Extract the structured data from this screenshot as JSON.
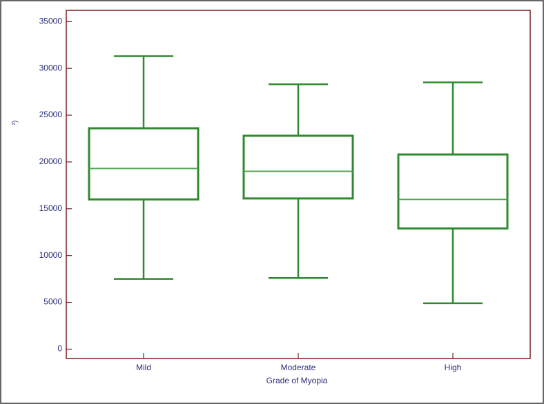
{
  "chart_data": {
    "type": "box",
    "x_label": "Grade of Myopia",
    "y_label": "²)",
    "categories": [
      "Mild",
      "Moderate",
      "High"
    ],
    "boxes": [
      {
        "min": 7500,
        "q1": 16000,
        "median": 19300,
        "q3": 23600,
        "max": 31300
      },
      {
        "min": 7600,
        "q1": 16100,
        "median": 19000,
        "q3": 22800,
        "max": 28300
      },
      {
        "min": 4900,
        "q1": 12900,
        "median": 16000,
        "q3": 20800,
        "max": 28500
      }
    ],
    "color": "#2f8a2f",
    "ylim": [
      -1000,
      36200
    ],
    "yticks": [
      0,
      5000,
      10000,
      15000,
      20000,
      25000,
      30000,
      35000
    ]
  }
}
